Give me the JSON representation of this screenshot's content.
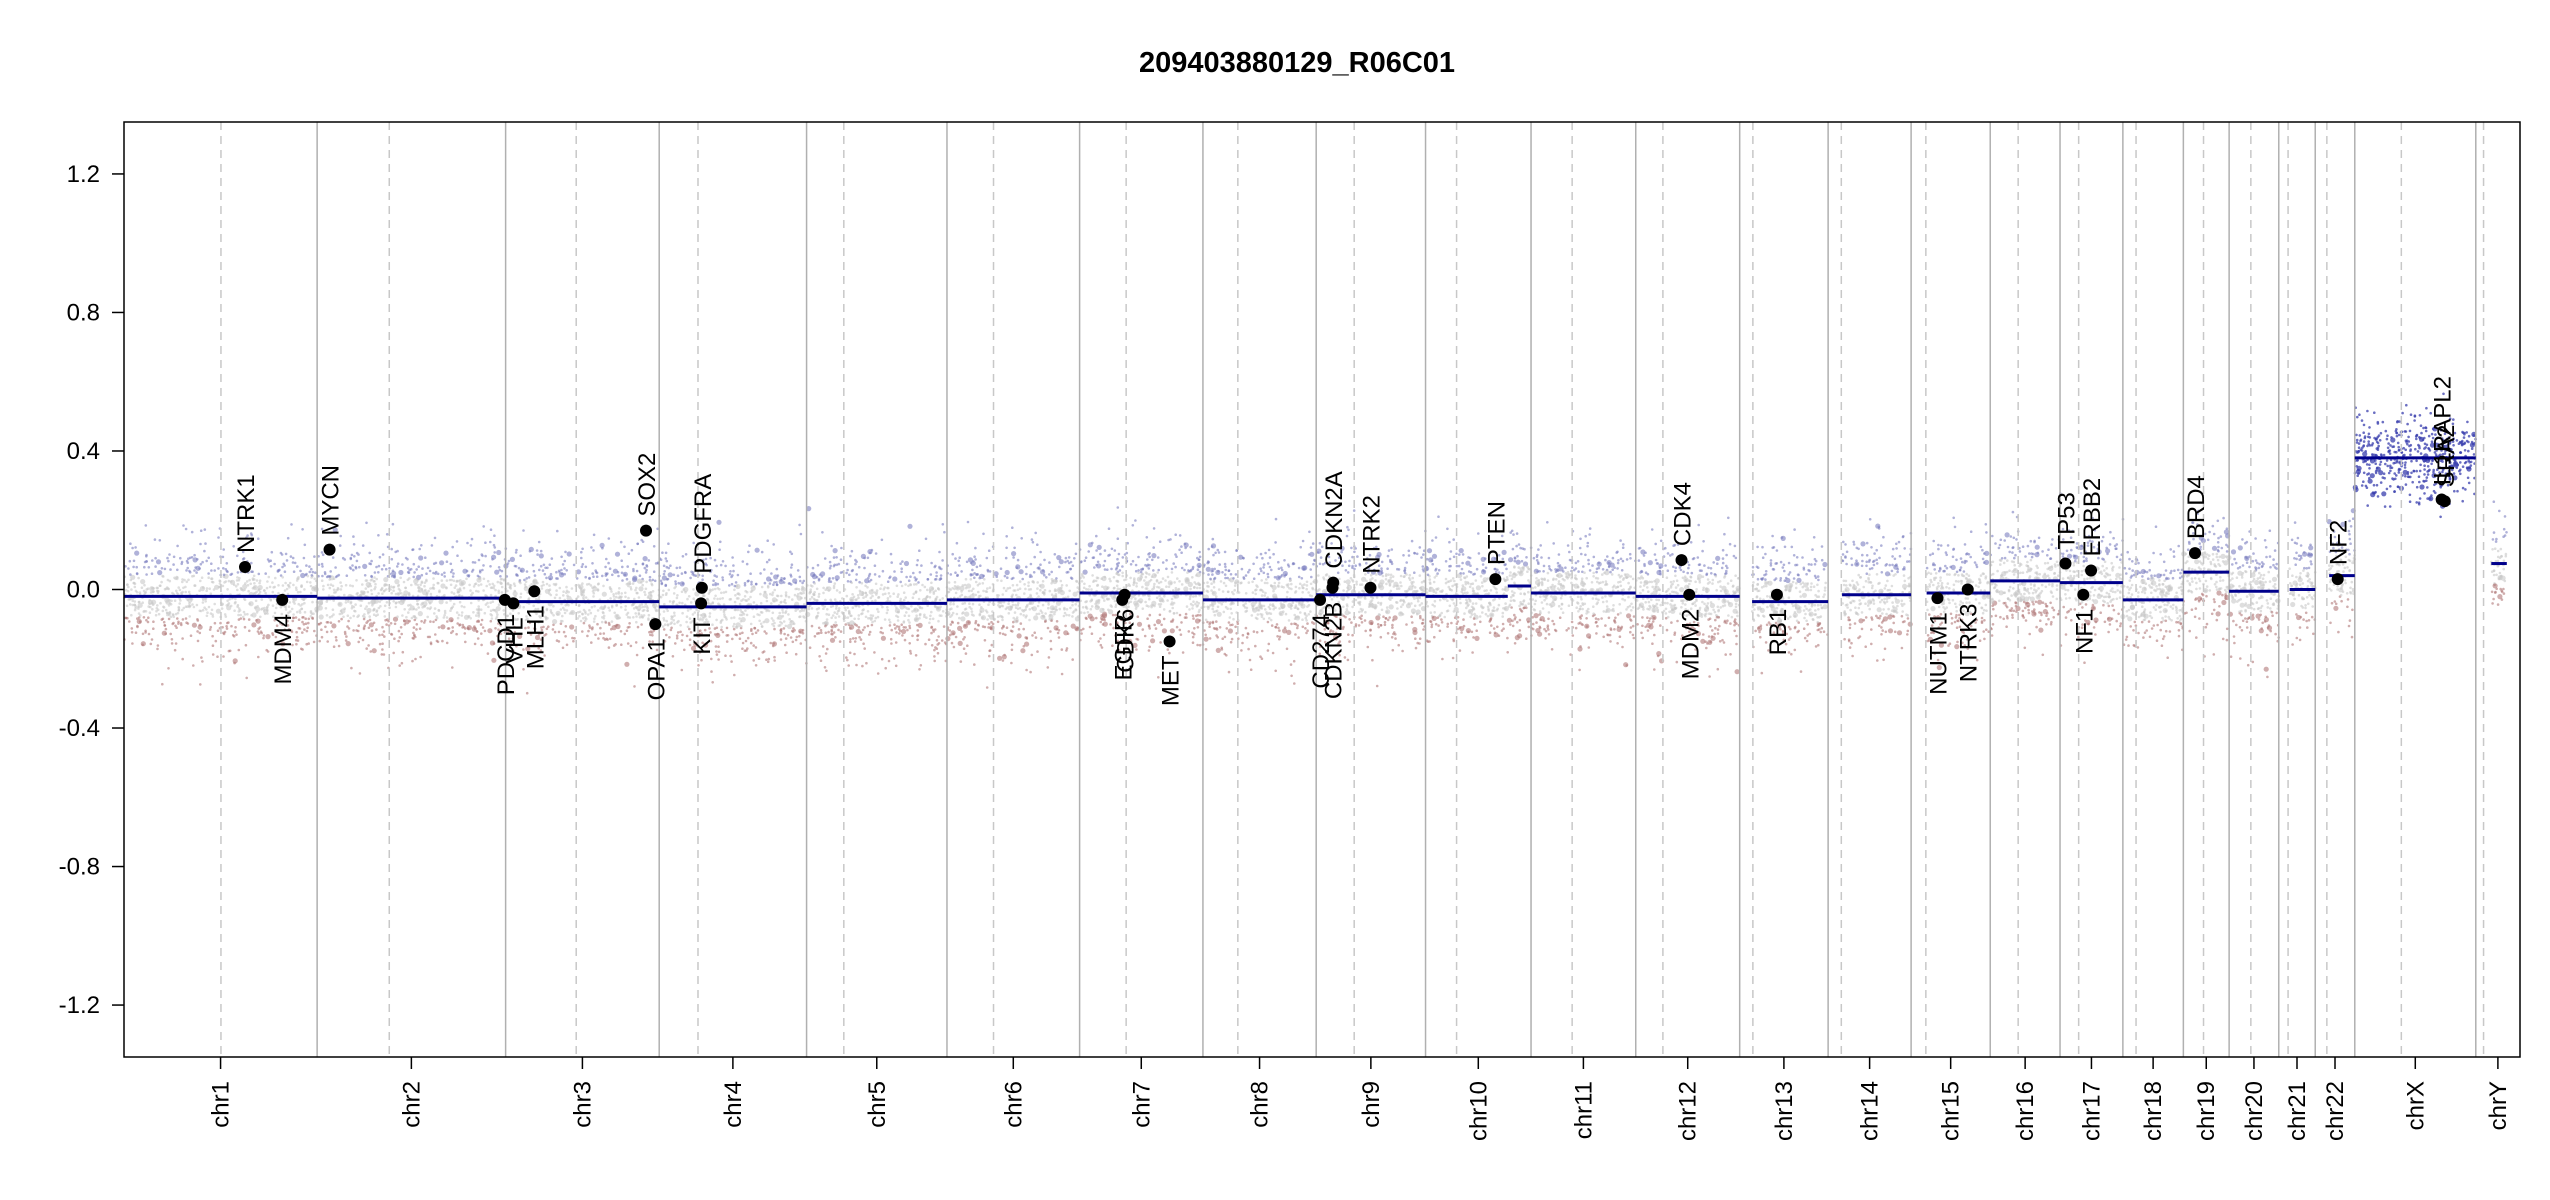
{
  "chart_data": {
    "type": "scatter",
    "title": "209403880129_R06C01",
    "xlabel": "",
    "ylabel": "",
    "ylim": [
      -1.35,
      1.35
    ],
    "yticks": [
      {
        "value": 1.2,
        "label": "1.2"
      },
      {
        "value": 0.8,
        "label": "0.8"
      },
      {
        "value": 0.4,
        "label": "0.4"
      },
      {
        "value": 0.0,
        "label": "0.0"
      },
      {
        "value": -0.4,
        "label": "-0.4"
      },
      {
        "value": -0.8,
        "label": "-0.8"
      },
      {
        "value": -1.2,
        "label": "-1.2"
      }
    ],
    "grid": false,
    "colors": {
      "segment": "#00008b",
      "gain_probe": "#7b7fc0",
      "neutral_probe": "#c8c8c8",
      "loss_probe": "#b07878",
      "gene_point": "#000000",
      "chrom_boundary": "#b0b0b0",
      "centromere": "#c8c8c8"
    },
    "chromosomes": [
      {
        "name": "chr1",
        "start": 0,
        "end": 249,
        "centromere": 125
      },
      {
        "name": "chr2",
        "start": 249,
        "end": 492,
        "centromere": 93
      },
      {
        "name": "chr3",
        "start": 492,
        "end": 690,
        "centromere": 91
      },
      {
        "name": "chr4",
        "start": 690,
        "end": 880,
        "centromere": 50
      },
      {
        "name": "chr5",
        "start": 880,
        "end": 1061,
        "centromere": 48
      },
      {
        "name": "chr6",
        "start": 1061,
        "end": 1232,
        "centromere": 60
      },
      {
        "name": "chr7",
        "start": 1232,
        "end": 1391,
        "centromere": 60
      },
      {
        "name": "chr8",
        "start": 1391,
        "end": 1537,
        "centromere": 45
      },
      {
        "name": "chr9",
        "start": 1537,
        "end": 1678,
        "centromere": 49
      },
      {
        "name": "chr10",
        "start": 1678,
        "end": 1814,
        "centromere": 40
      },
      {
        "name": "chr11",
        "start": 1814,
        "end": 1949,
        "centromere": 53
      },
      {
        "name": "chr12",
        "start": 1949,
        "end": 2083,
        "centromere": 35
      },
      {
        "name": "chr13",
        "start": 2083,
        "end": 2197,
        "centromere": 17
      },
      {
        "name": "chr14",
        "start": 2197,
        "end": 2304,
        "centromere": 17
      },
      {
        "name": "chr15",
        "start": 2304,
        "end": 2406,
        "centromere": 19
      },
      {
        "name": "chr16",
        "start": 2406,
        "end": 2496,
        "centromere": 36
      },
      {
        "name": "chr17",
        "start": 2496,
        "end": 2577,
        "centromere": 24
      },
      {
        "name": "chr18",
        "start": 2577,
        "end": 2655,
        "centromere": 17
      },
      {
        "name": "chr19",
        "start": 2655,
        "end": 2714,
        "centromere": 26
      },
      {
        "name": "chr20",
        "start": 2714,
        "end": 2778,
        "centromere": 28
      },
      {
        "name": "chr21",
        "start": 2778,
        "end": 2825,
        "centromere": 12
      },
      {
        "name": "chr22",
        "start": 2825,
        "end": 2876,
        "centromere": 15
      },
      {
        "name": "chrX",
        "start": 2876,
        "end": 3032,
        "centromere": 60
      },
      {
        "name": "chrY",
        "start": 3032,
        "end": 3089,
        "centromere": 10
      }
    ],
    "segments": [
      {
        "chr": "chr1",
        "x0": 0,
        "x1": 249,
        "y": -0.02
      },
      {
        "chr": "chr2",
        "x0": 249,
        "x1": 492,
        "y": -0.025
      },
      {
        "chr": "chr3",
        "x0": 492,
        "x1": 690,
        "y": -0.035
      },
      {
        "chr": "chr4",
        "x0": 690,
        "x1": 880,
        "y": -0.05
      },
      {
        "chr": "chr5",
        "x0": 880,
        "x1": 1061,
        "y": -0.04
      },
      {
        "chr": "chr6",
        "x0": 1061,
        "x1": 1232,
        "y": -0.03
      },
      {
        "chr": "chr7",
        "x0": 1232,
        "x1": 1391,
        "y": -0.01
      },
      {
        "chr": "chr8",
        "x0": 1391,
        "x1": 1537,
        "y": -0.03
      },
      {
        "chr": "chr9",
        "x0": 1537,
        "x1": 1678,
        "y": -0.015
      },
      {
        "chr": "chr10",
        "x0": 1678,
        "x1": 1784,
        "y": -0.02
      },
      {
        "chr": "chr10",
        "x0": 1784,
        "x1": 1814,
        "y": 0.01
      },
      {
        "chr": "chr11",
        "x0": 1814,
        "x1": 1949,
        "y": -0.01
      },
      {
        "chr": "chr12",
        "x0": 1949,
        "x1": 2083,
        "y": -0.02
      },
      {
        "chr": "chr13",
        "x0": 2099,
        "x1": 2197,
        "y": -0.035
      },
      {
        "chr": "chr14",
        "x0": 2215,
        "x1": 2304,
        "y": -0.015
      },
      {
        "chr": "chr15",
        "x0": 2324,
        "x1": 2406,
        "y": -0.01
      },
      {
        "chr": "chr16",
        "x0": 2406,
        "x1": 2496,
        "y": 0.025
      },
      {
        "chr": "chr17",
        "x0": 2496,
        "x1": 2577,
        "y": 0.02
      },
      {
        "chr": "chr18",
        "x0": 2577,
        "x1": 2655,
        "y": -0.03
      },
      {
        "chr": "chr19",
        "x0": 2655,
        "x1": 2714,
        "y": 0.05
      },
      {
        "chr": "chr20",
        "x0": 2714,
        "x1": 2778,
        "y": -0.005
      },
      {
        "chr": "chr21",
        "x0": 2792,
        "x1": 2825,
        "y": 0.0
      },
      {
        "chr": "chr22",
        "x0": 2843,
        "x1": 2876,
        "y": 0.04
      },
      {
        "chr": "chrX",
        "x0": 2876,
        "x1": 3032,
        "y": 0.38
      },
      {
        "chr": "chrY",
        "x0": 3052,
        "x1": 3072,
        "y": 0.075
      }
    ],
    "genes": [
      {
        "name": "NTRK1",
        "x": 156,
        "y": 0.065,
        "label": "above"
      },
      {
        "name": "MDM4",
        "x": 204,
        "y": -0.03,
        "label": "below"
      },
      {
        "name": "MYCN",
        "x": 265,
        "y": 0.115,
        "label": "above"
      },
      {
        "name": "PDCD1",
        "x": 491,
        "y": -0.03,
        "label": "below"
      },
      {
        "name": "VHL",
        "x": 502,
        "y": -0.04,
        "label": "below"
      },
      {
        "name": "MLH1",
        "x": 529,
        "y": -0.005,
        "label": "below"
      },
      {
        "name": "SOX2",
        "x": 673,
        "y": 0.17,
        "label": "above"
      },
      {
        "name": "OPA1",
        "x": 685,
        "y": -0.1,
        "label": "below"
      },
      {
        "name": "KIT",
        "x": 744,
        "y": -0.04,
        "label": "below"
      },
      {
        "name": "PDGFRA",
        "x": 745,
        "y": 0.005,
        "label": "above"
      },
      {
        "name": "EGFR",
        "x": 1287,
        "y": -0.03,
        "label": "below"
      },
      {
        "name": "CDK6",
        "x": 1290,
        "y": -0.015,
        "label": "below"
      },
      {
        "name": "MET",
        "x": 1348,
        "y": -0.15,
        "label": "below"
      },
      {
        "name": "CD274",
        "x": 1542,
        "y": -0.03,
        "label": "below"
      },
      {
        "name": "CDKN2B",
        "x": 1558,
        "y": 0.005,
        "label": "below"
      },
      {
        "name": "CDKN2A",
        "x": 1559,
        "y": 0.02,
        "label": "above"
      },
      {
        "name": "NTRK2",
        "x": 1607,
        "y": 0.005,
        "label": "above"
      },
      {
        "name": "PTEN",
        "x": 1768,
        "y": 0.03,
        "label": "above"
      },
      {
        "name": "CDK4",
        "x": 2008,
        "y": 0.085,
        "label": "above"
      },
      {
        "name": "MDM2",
        "x": 2018,
        "y": -0.015,
        "label": "below"
      },
      {
        "name": "RB1",
        "x": 2131,
        "y": -0.015,
        "label": "below"
      },
      {
        "name": "NUTM1",
        "x": 2338,
        "y": -0.025,
        "label": "below"
      },
      {
        "name": "NTRK3",
        "x": 2377,
        "y": 0.0,
        "label": "below"
      },
      {
        "name": "TP53",
        "x": 2503,
        "y": 0.075,
        "label": "above"
      },
      {
        "name": "NF1",
        "x": 2526,
        "y": -0.015,
        "label": "below"
      },
      {
        "name": "ERBB2",
        "x": 2536,
        "y": 0.055,
        "label": "above"
      },
      {
        "name": "BRD4",
        "x": 2670,
        "y": 0.105,
        "label": "above"
      },
      {
        "name": "NF2",
        "x": 2854,
        "y": 0.03,
        "label": "above"
      },
      {
        "name": "IL1RAPL2",
        "x": 2988,
        "y": 0.26,
        "label": "above"
      },
      {
        "name": "SRA2",
        "x": 2992,
        "y": 0.255,
        "label": "above"
      }
    ]
  }
}
